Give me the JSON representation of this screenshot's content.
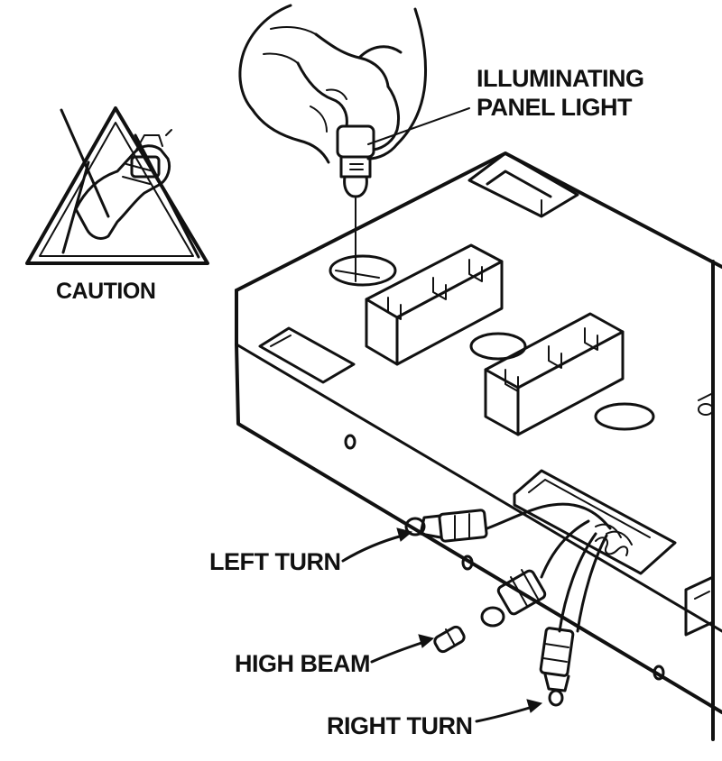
{
  "labels": {
    "illuminating_line1": "ILLUMINATING",
    "illuminating_line2": "PANEL LIGHT",
    "caution": "CAUTION",
    "left_turn": "LEFT TURN",
    "high_beam": "HIGH BEAM",
    "right_turn": "RIGHT TURN"
  },
  "icons": {
    "caution": "caution-triangle-hand-icon",
    "hand": "hand-holding-bulb-icon",
    "bulb": "bulb-icon",
    "housing": "light-housing-icon"
  },
  "colors": {
    "ink": "#111111",
    "background": "#ffffff"
  }
}
